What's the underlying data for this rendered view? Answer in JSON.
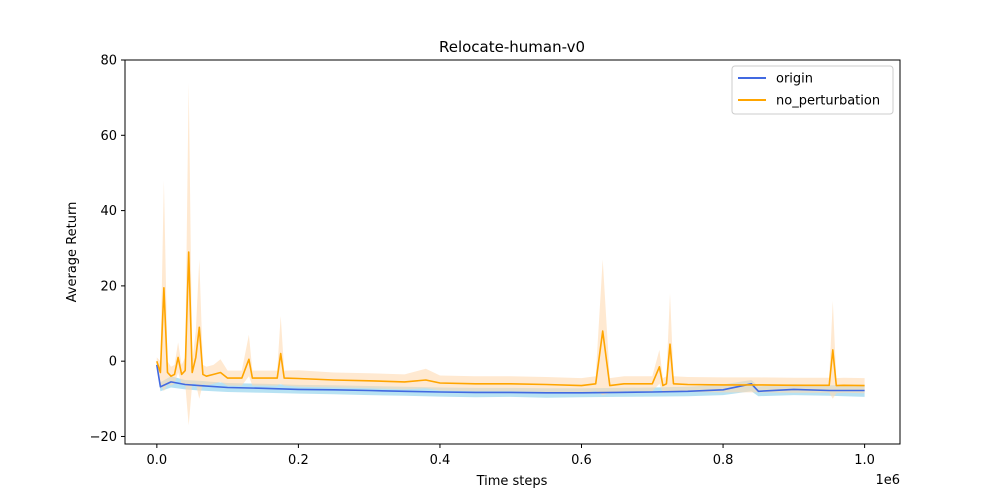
{
  "chart_data": {
    "type": "line",
    "title": "Relocate-human-v0",
    "xlabel": "Time steps",
    "ylabel": "Average Return",
    "x_offset_label": "1e6",
    "xlim": [
      -0.045,
      1.05
    ],
    "ylim": [
      -22,
      80
    ],
    "x_ticks": [
      0.0,
      0.2,
      0.4,
      0.6,
      0.8,
      1.0
    ],
    "x_tick_labels": [
      "0.0",
      "0.2",
      "0.4",
      "0.6",
      "0.8",
      "1.0"
    ],
    "y_ticks": [
      -20,
      0,
      20,
      40,
      60,
      80
    ],
    "y_tick_labels": [
      "−20",
      "0",
      "20",
      "40",
      "60",
      "80"
    ],
    "legend_position": "top-right",
    "series": [
      {
        "name": "origin",
        "color": "#4169e1",
        "band_color": "#87ceeb",
        "x": [
          0.0,
          0.005,
          0.02,
          0.04,
          0.06,
          0.1,
          0.15,
          0.2,
          0.25,
          0.3,
          0.35,
          0.4,
          0.45,
          0.5,
          0.55,
          0.6,
          0.65,
          0.7,
          0.75,
          0.8,
          0.84,
          0.85,
          0.9,
          0.95,
          1.0
        ],
        "y": [
          -1.0,
          -6.8,
          -5.5,
          -6.2,
          -6.5,
          -7.0,
          -7.2,
          -7.5,
          -7.6,
          -7.8,
          -8.0,
          -8.2,
          -8.3,
          -8.3,
          -8.4,
          -8.4,
          -8.3,
          -8.2,
          -8.0,
          -7.6,
          -6.0,
          -8.0,
          -7.5,
          -7.8,
          -7.8
        ],
        "lower": [
          -1.5,
          -8.0,
          -7.0,
          -7.5,
          -7.8,
          -8.2,
          -8.4,
          -8.6,
          -8.8,
          -9.0,
          -9.2,
          -9.4,
          -9.6,
          -9.5,
          -9.7,
          -9.6,
          -9.5,
          -9.4,
          -9.3,
          -9.0,
          -8.0,
          -9.3,
          -9.0,
          -9.2,
          -9.5
        ],
        "upper": [
          -0.5,
          -5.6,
          -4.0,
          -5.0,
          -5.2,
          -5.8,
          -6.0,
          -6.3,
          -6.4,
          -6.6,
          -6.8,
          -7.0,
          -7.1,
          -7.1,
          -7.2,
          -7.2,
          -7.1,
          -7.0,
          -6.8,
          -6.2,
          -5.0,
          -6.7,
          -6.1,
          -6.4,
          -6.3
        ]
      },
      {
        "name": "no_perturbation",
        "color": "#ffa500",
        "band_color": "#ffdab3",
        "x": [
          0.0,
          0.005,
          0.01,
          0.015,
          0.02,
          0.025,
          0.03,
          0.035,
          0.04,
          0.045,
          0.05,
          0.055,
          0.06,
          0.065,
          0.07,
          0.08,
          0.09,
          0.1,
          0.12,
          0.13,
          0.135,
          0.15,
          0.17,
          0.175,
          0.18,
          0.2,
          0.25,
          0.3,
          0.35,
          0.38,
          0.4,
          0.45,
          0.5,
          0.55,
          0.6,
          0.62,
          0.63,
          0.64,
          0.66,
          0.7,
          0.71,
          0.715,
          0.72,
          0.725,
          0.73,
          0.75,
          0.8,
          0.85,
          0.9,
          0.95,
          0.955,
          0.96,
          0.97,
          1.0
        ],
        "y": [
          0.0,
          -3.0,
          19.5,
          -3.0,
          -4.0,
          -3.5,
          1.0,
          -3.5,
          -2.5,
          29.0,
          -3.0,
          1.0,
          9.0,
          -3.5,
          -4.0,
          -3.5,
          -3.0,
          -4.5,
          -4.5,
          0.5,
          -4.5,
          -4.5,
          -4.5,
          2.0,
          -4.5,
          -4.6,
          -5.0,
          -5.2,
          -5.5,
          -5.0,
          -5.8,
          -6.0,
          -6.0,
          -6.2,
          -6.5,
          -6.0,
          8.0,
          -6.5,
          -6.0,
          -6.0,
          -1.5,
          -6.5,
          -6.0,
          4.5,
          -6.0,
          -6.2,
          -6.3,
          -6.3,
          -6.4,
          -6.4,
          3.0,
          -6.5,
          -6.4,
          -6.5
        ],
        "lower": [
          -1.0,
          -6.0,
          -8.0,
          -6.0,
          -6.5,
          -6.0,
          -3.0,
          -6.0,
          -6.0,
          -17.0,
          -6.0,
          -6.0,
          -10.0,
          -6.0,
          -6.5,
          -6.0,
          -5.5,
          -6.5,
          -6.5,
          -4.0,
          -6.5,
          -6.5,
          -6.5,
          -6.0,
          -6.5,
          -6.8,
          -7.0,
          -7.2,
          -7.5,
          -7.2,
          -7.8,
          -8.0,
          -8.0,
          -8.2,
          -8.5,
          -8.0,
          -9.0,
          -8.5,
          -8.0,
          -8.0,
          -6.0,
          -8.5,
          -8.0,
          -8.0,
          -8.0,
          -8.2,
          -8.3,
          -8.3,
          -8.4,
          -8.4,
          -10.0,
          -8.5,
          -8.4,
          -8.5
        ],
        "upper": [
          1.0,
          0.0,
          48.0,
          0.0,
          -1.5,
          -1.0,
          5.0,
          -1.0,
          1.0,
          74.0,
          0.0,
          8.0,
          27.0,
          -1.0,
          -1.5,
          -1.0,
          0.5,
          -2.5,
          -2.5,
          7.0,
          -2.5,
          -2.5,
          -2.5,
          12.0,
          -2.5,
          -2.4,
          -3.0,
          -3.2,
          -3.5,
          -2.0,
          -3.8,
          -4.0,
          -4.0,
          -4.2,
          -4.5,
          -4.0,
          27.0,
          -4.5,
          -4.0,
          -4.0,
          3.0,
          -4.5,
          -4.0,
          18.0,
          -4.0,
          -4.2,
          -4.3,
          -4.3,
          -4.4,
          -4.4,
          16.0,
          -4.5,
          -4.4,
          -4.5
        ]
      }
    ]
  }
}
